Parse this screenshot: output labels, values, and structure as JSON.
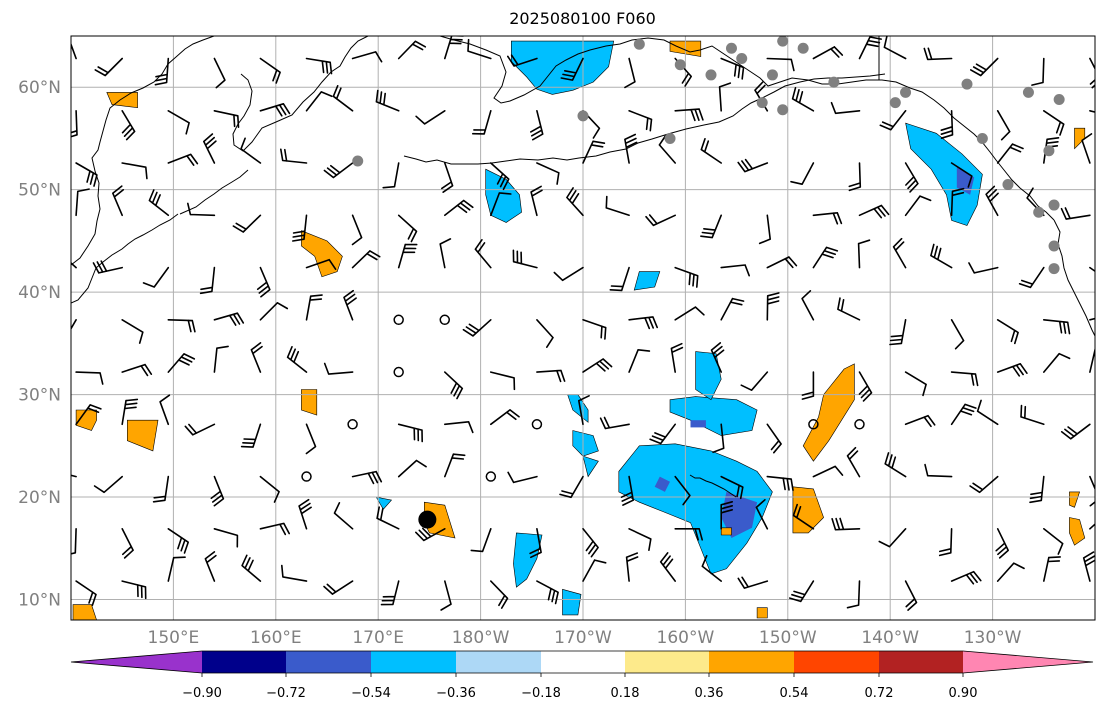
{
  "title": "2025080100 F060",
  "map": {
    "projection": "equirectangular",
    "lon_range": [
      140,
      240
    ],
    "lat_range": [
      8,
      65
    ],
    "lat_ticks": [
      {
        "lat": 10,
        "label": "10°N"
      },
      {
        "lat": 20,
        "label": "20°N"
      },
      {
        "lat": 30,
        "label": "30°N"
      },
      {
        "lat": 40,
        "label": "40°N"
      },
      {
        "lat": 50,
        "label": "50°N"
      },
      {
        "lat": 60,
        "label": "60°N"
      }
    ],
    "lon_ticks": [
      {
        "lon": 150,
        "label": "150°E"
      },
      {
        "lon": 160,
        "label": "160°E"
      },
      {
        "lon": 170,
        "label": "170°E"
      },
      {
        "lon": 180,
        "label": "180°W"
      },
      {
        "lon": 190,
        "label": "170°W"
      },
      {
        "lon": 200,
        "label": "160°W"
      },
      {
        "lon": 210,
        "label": "150°W"
      },
      {
        "lon": 220,
        "label": "140°W"
      },
      {
        "lon": 230,
        "label": "130°W"
      }
    ],
    "grid": true,
    "gridline_color": "#b0b0b0",
    "coastline_color": "#000000",
    "gray_markers_color": "#808080",
    "gray_markers": [
      [
        195.5,
        64.2
      ],
      [
        204.5,
        63.8
      ],
      [
        209.5,
        64.5
      ],
      [
        211.5,
        63.8
      ],
      [
        205.5,
        62.8
      ],
      [
        199.5,
        62.2
      ],
      [
        202.5,
        61.2
      ],
      [
        208.5,
        61.2
      ],
      [
        214.5,
        60.5
      ],
      [
        227.5,
        60.3
      ],
      [
        221.5,
        59.5
      ],
      [
        233.5,
        59.5
      ],
      [
        220.5,
        58.5
      ],
      [
        207.5,
        58.5
      ],
      [
        209.5,
        57.8
      ],
      [
        236.5,
        58.8
      ],
      [
        190.0,
        57.2
      ],
      [
        198.5,
        55.0
      ],
      [
        229.0,
        55.0
      ],
      [
        235.5,
        53.8
      ],
      [
        168.0,
        52.8
      ],
      [
        231.5,
        50.5
      ],
      [
        236.0,
        48.5
      ],
      [
        234.5,
        47.8
      ],
      [
        236.0,
        44.5
      ],
      [
        236.0,
        42.3
      ]
    ],
    "black_dot": {
      "lon": 174.8,
      "lat": 17.8
    }
  },
  "anomaly_fields": {
    "blue_regions": [
      {
        "level": 1,
        "points": [
          [
            183,
            64.5
          ],
          [
            193,
            64.5
          ],
          [
            192.5,
            62
          ],
          [
            191,
            60.5
          ],
          [
            189,
            59.7
          ],
          [
            187,
            59.3
          ],
          [
            185.5,
            59.8
          ],
          [
            184.5,
            61
          ],
          [
            183,
            62.5
          ]
        ]
      },
      {
        "level": 1,
        "points": [
          [
            180.5,
            52
          ],
          [
            182.5,
            51
          ],
          [
            183.8,
            49.5
          ],
          [
            184,
            47.8
          ],
          [
            182.5,
            46.8
          ],
          [
            181,
            47.5
          ],
          [
            180.5,
            49.5
          ]
        ]
      },
      {
        "level": 1,
        "points": [
          [
            221.5,
            56.5
          ],
          [
            224.5,
            55.5
          ],
          [
            227,
            53.5
          ],
          [
            229,
            51.5
          ],
          [
            228.5,
            48.5
          ],
          [
            227.5,
            46.5
          ],
          [
            226,
            47
          ],
          [
            225.5,
            49.5
          ],
          [
            224,
            52
          ],
          [
            222,
            54
          ]
        ]
      },
      {
        "level": 2,
        "points": [
          [
            226.5,
            52.2
          ],
          [
            228.2,
            51.2
          ],
          [
            227.8,
            49.5
          ],
          [
            226.5,
            50.2
          ]
        ]
      },
      {
        "level": 1,
        "points": [
          [
            195.5,
            25
          ],
          [
            199,
            25.2
          ],
          [
            202.5,
            24.5
          ],
          [
            205,
            23.5
          ],
          [
            207,
            22.5
          ],
          [
            208.5,
            20.5
          ],
          [
            207.5,
            18
          ],
          [
            206,
            15.5
          ],
          [
            204,
            13
          ],
          [
            202.5,
            12.5
          ],
          [
            201.5,
            15
          ],
          [
            200.5,
            17.5
          ],
          [
            198,
            18.5
          ],
          [
            195.5,
            19.5
          ],
          [
            193.5,
            20.5
          ],
          [
            193.5,
            22.5
          ]
        ]
      },
      {
        "level": 2,
        "points": [
          [
            204,
            20.5
          ],
          [
            207,
            19.5
          ],
          [
            206.5,
            17
          ],
          [
            204.5,
            16
          ],
          [
            203.5,
            18
          ]
        ]
      },
      {
        "level": 2,
        "points": [
          [
            197.5,
            22
          ],
          [
            198.5,
            21.5
          ],
          [
            198,
            20.5
          ],
          [
            197,
            21
          ]
        ]
      },
      {
        "level": 1,
        "points": [
          [
            198.5,
            29.5
          ],
          [
            201,
            29.8
          ],
          [
            205,
            29.5
          ],
          [
            207,
            28.5
          ],
          [
            206.5,
            26.5
          ],
          [
            203.5,
            26
          ],
          [
            200.5,
            27.5
          ],
          [
            198.5,
            28.3
          ]
        ]
      },
      {
        "level": 2,
        "points": [
          [
            200.5,
            27.5
          ],
          [
            202,
            27.5
          ],
          [
            202,
            26.8
          ],
          [
            200.5,
            26.8
          ]
        ]
      },
      {
        "level": 1,
        "points": [
          [
            201,
            34.2
          ],
          [
            203,
            34
          ],
          [
            203.5,
            31.5
          ],
          [
            202.5,
            29.5
          ],
          [
            201,
            30.5
          ]
        ]
      },
      {
        "level": 1,
        "points": [
          [
            189.5,
            30
          ],
          [
            190.5,
            28.5
          ],
          [
            190.5,
            27.3
          ],
          [
            189,
            28.5
          ],
          [
            188.5,
            30
          ]
        ]
      },
      {
        "level": 1,
        "points": [
          [
            189,
            26.5
          ],
          [
            191,
            26
          ],
          [
            191.5,
            24.5
          ],
          [
            190,
            24
          ],
          [
            189,
            25
          ]
        ]
      },
      {
        "level": 1,
        "points": [
          [
            190,
            24
          ],
          [
            191.5,
            23.5
          ],
          [
            190.5,
            22
          ]
        ]
      },
      {
        "level": 1,
        "points": [
          [
            183.5,
            16.5
          ],
          [
            186,
            16.3
          ],
          [
            185.5,
            14
          ],
          [
            184.5,
            12
          ],
          [
            183.5,
            11.2
          ],
          [
            183.2,
            13.5
          ]
        ]
      },
      {
        "level": 1,
        "points": [
          [
            188,
            11
          ],
          [
            189.8,
            10.5
          ],
          [
            189.5,
            8.5
          ],
          [
            188,
            8.5
          ]
        ]
      },
      {
        "level": 1,
        "points": [
          [
            195.5,
            42
          ],
          [
            197.5,
            42
          ],
          [
            197,
            40.5
          ],
          [
            195,
            40.2
          ]
        ]
      },
      {
        "level": 1,
        "points": [
          [
            169.8,
            20
          ],
          [
            171.3,
            19.7
          ],
          [
            170.5,
            18.8
          ]
        ]
      }
    ],
    "orange_regions": [
      {
        "points": [
          [
            143.5,
            59.5
          ],
          [
            146.5,
            59.5
          ],
          [
            146.5,
            58
          ],
          [
            144,
            58.3
          ]
        ]
      },
      {
        "points": [
          [
            162.5,
            46
          ],
          [
            165,
            45
          ],
          [
            166.5,
            43.5
          ],
          [
            166,
            42
          ],
          [
            164.5,
            41.5
          ],
          [
            163.8,
            43.5
          ],
          [
            162.5,
            44.5
          ]
        ]
      },
      {
        "points": [
          [
            198.5,
            64.5
          ],
          [
            201.5,
            64.5
          ],
          [
            201.5,
            63
          ],
          [
            198.5,
            63.5
          ]
        ]
      },
      {
        "points": [
          [
            238,
            56
          ],
          [
            239,
            56
          ],
          [
            239,
            55.2
          ],
          [
            239,
            55
          ],
          [
            238,
            54
          ]
        ]
      },
      {
        "points": [
          [
            140.5,
            28.5
          ],
          [
            142.5,
            28.5
          ],
          [
            142.5,
            27.5
          ],
          [
            142,
            26.5
          ],
          [
            140.5,
            27
          ]
        ]
      },
      {
        "points": [
          [
            145.5,
            27.5
          ],
          [
            148.5,
            27.5
          ],
          [
            148,
            24.5
          ],
          [
            145.5,
            25.5
          ]
        ]
      },
      {
        "points": [
          [
            162.5,
            30.5
          ],
          [
            164,
            30.5
          ],
          [
            164,
            28
          ],
          [
            162.5,
            28.5
          ]
        ]
      },
      {
        "points": [
          [
            174.5,
            19.5
          ],
          [
            176.5,
            19.2
          ],
          [
            177.5,
            16
          ],
          [
            175,
            16.5
          ],
          [
            174.5,
            17.5
          ]
        ]
      },
      {
        "points": [
          [
            215.5,
            32.5
          ],
          [
            216.5,
            33
          ],
          [
            216.5,
            29.5
          ],
          [
            214,
            25.5
          ],
          [
            212.5,
            23.5
          ],
          [
            211.5,
            25
          ],
          [
            213,
            27.8
          ],
          [
            213.5,
            30
          ]
        ]
      },
      {
        "points": [
          [
            210.5,
            21
          ],
          [
            212.5,
            20.8
          ],
          [
            213.5,
            18
          ],
          [
            212,
            16.5
          ],
          [
            210.5,
            16.5
          ],
          [
            210.5,
            18.5
          ]
        ]
      },
      {
        "points": [
          [
            140.2,
            9.5
          ],
          [
            142,
            9.5
          ],
          [
            142.5,
            8
          ],
          [
            140.2,
            8
          ]
        ]
      },
      {
        "points": [
          [
            203.5,
            17
          ],
          [
            204.5,
            17
          ],
          [
            204.5,
            16.3
          ],
          [
            203.5,
            16.3
          ]
        ]
      },
      {
        "points": [
          [
            237.5,
            20.5
          ],
          [
            238.5,
            20.5
          ],
          [
            238,
            19
          ],
          [
            237.5,
            19.2
          ]
        ]
      },
      {
        "points": [
          [
            237.5,
            18
          ],
          [
            238.5,
            17.8
          ],
          [
            239,
            16
          ],
          [
            238,
            15.3
          ],
          [
            237.5,
            16.5
          ]
        ]
      },
      {
        "points": [
          [
            207,
            9.2
          ],
          [
            208,
            9.2
          ],
          [
            208,
            8.2
          ],
          [
            207,
            8.2
          ]
        ]
      }
    ]
  },
  "wind_barbs": [
    [
      140,
      14,
      12,
      6,
      9
    ],
    [
      165,
      16,
      12,
      3,
      9
    ],
    [
      178,
      14,
      19,
      7,
      -8
    ],
    [
      202,
      14,
      22,
      3,
      9
    ],
    [
      215,
      17,
      7,
      -14,
      -8
    ],
    [
      231,
      14,
      17,
      -6,
      -8
    ],
    [
      250,
      16,
      11,
      -5,
      -8
    ],
    [
      265,
      17,
      15,
      1,
      10
    ],
    [
      278,
      18,
      9,
      -16,
      -5
    ],
    [
      287,
      16,
      16,
      -14,
      -10
    ],
    [
      301,
      16,
      12,
      -16,
      -3
    ],
    [
      313,
      15,
      17,
      -10,
      -9
    ],
    [
      323,
      14,
      16,
      2,
      -13
    ],
    [
      337,
      17,
      14,
      5,
      -14
    ],
    [
      346,
      18,
      9,
      6,
      -16
    ],
    [
      356,
      17,
      9,
      -14,
      -9
    ],
    [
      2,
      16,
      13,
      -12,
      -11
    ],
    [
      13,
      18,
      8,
      -12,
      -12
    ],
    [
      28,
      16,
      13,
      5,
      14
    ],
    [
      38,
      14,
      13,
      13,
      -5
    ],
    [
      51,
      14,
      14,
      -9,
      -8
    ],
    [
      65,
      15,
      11,
      12,
      -9
    ],
    [
      80,
      17,
      15,
      3,
      15
    ],
    [
      93,
      18,
      14,
      8,
      15
    ],
    [
      99,
      17,
      21,
      -12,
      14
    ],
    [
      118,
      17,
      11,
      -15,
      -1
    ],
    [
      128,
      14,
      9,
      12,
      6
    ],
    [
      135,
      14,
      21,
      3,
      12
    ]
  ],
  "colorbar": {
    "colors": [
      "#9932cc",
      "#00008b",
      "#3a5bcb",
      "#00bfff",
      "#add8f6",
      "#ffffff",
      "#fdea8b",
      "#ffa500",
      "#ff4500",
      "#b22222",
      "#ff86b2"
    ],
    "tick_labels": [
      "−0.90",
      "−0.72",
      "−0.54",
      "−0.36",
      "−0.18",
      "0.18",
      "0.36",
      "0.54",
      "0.72",
      "0.90"
    ]
  }
}
